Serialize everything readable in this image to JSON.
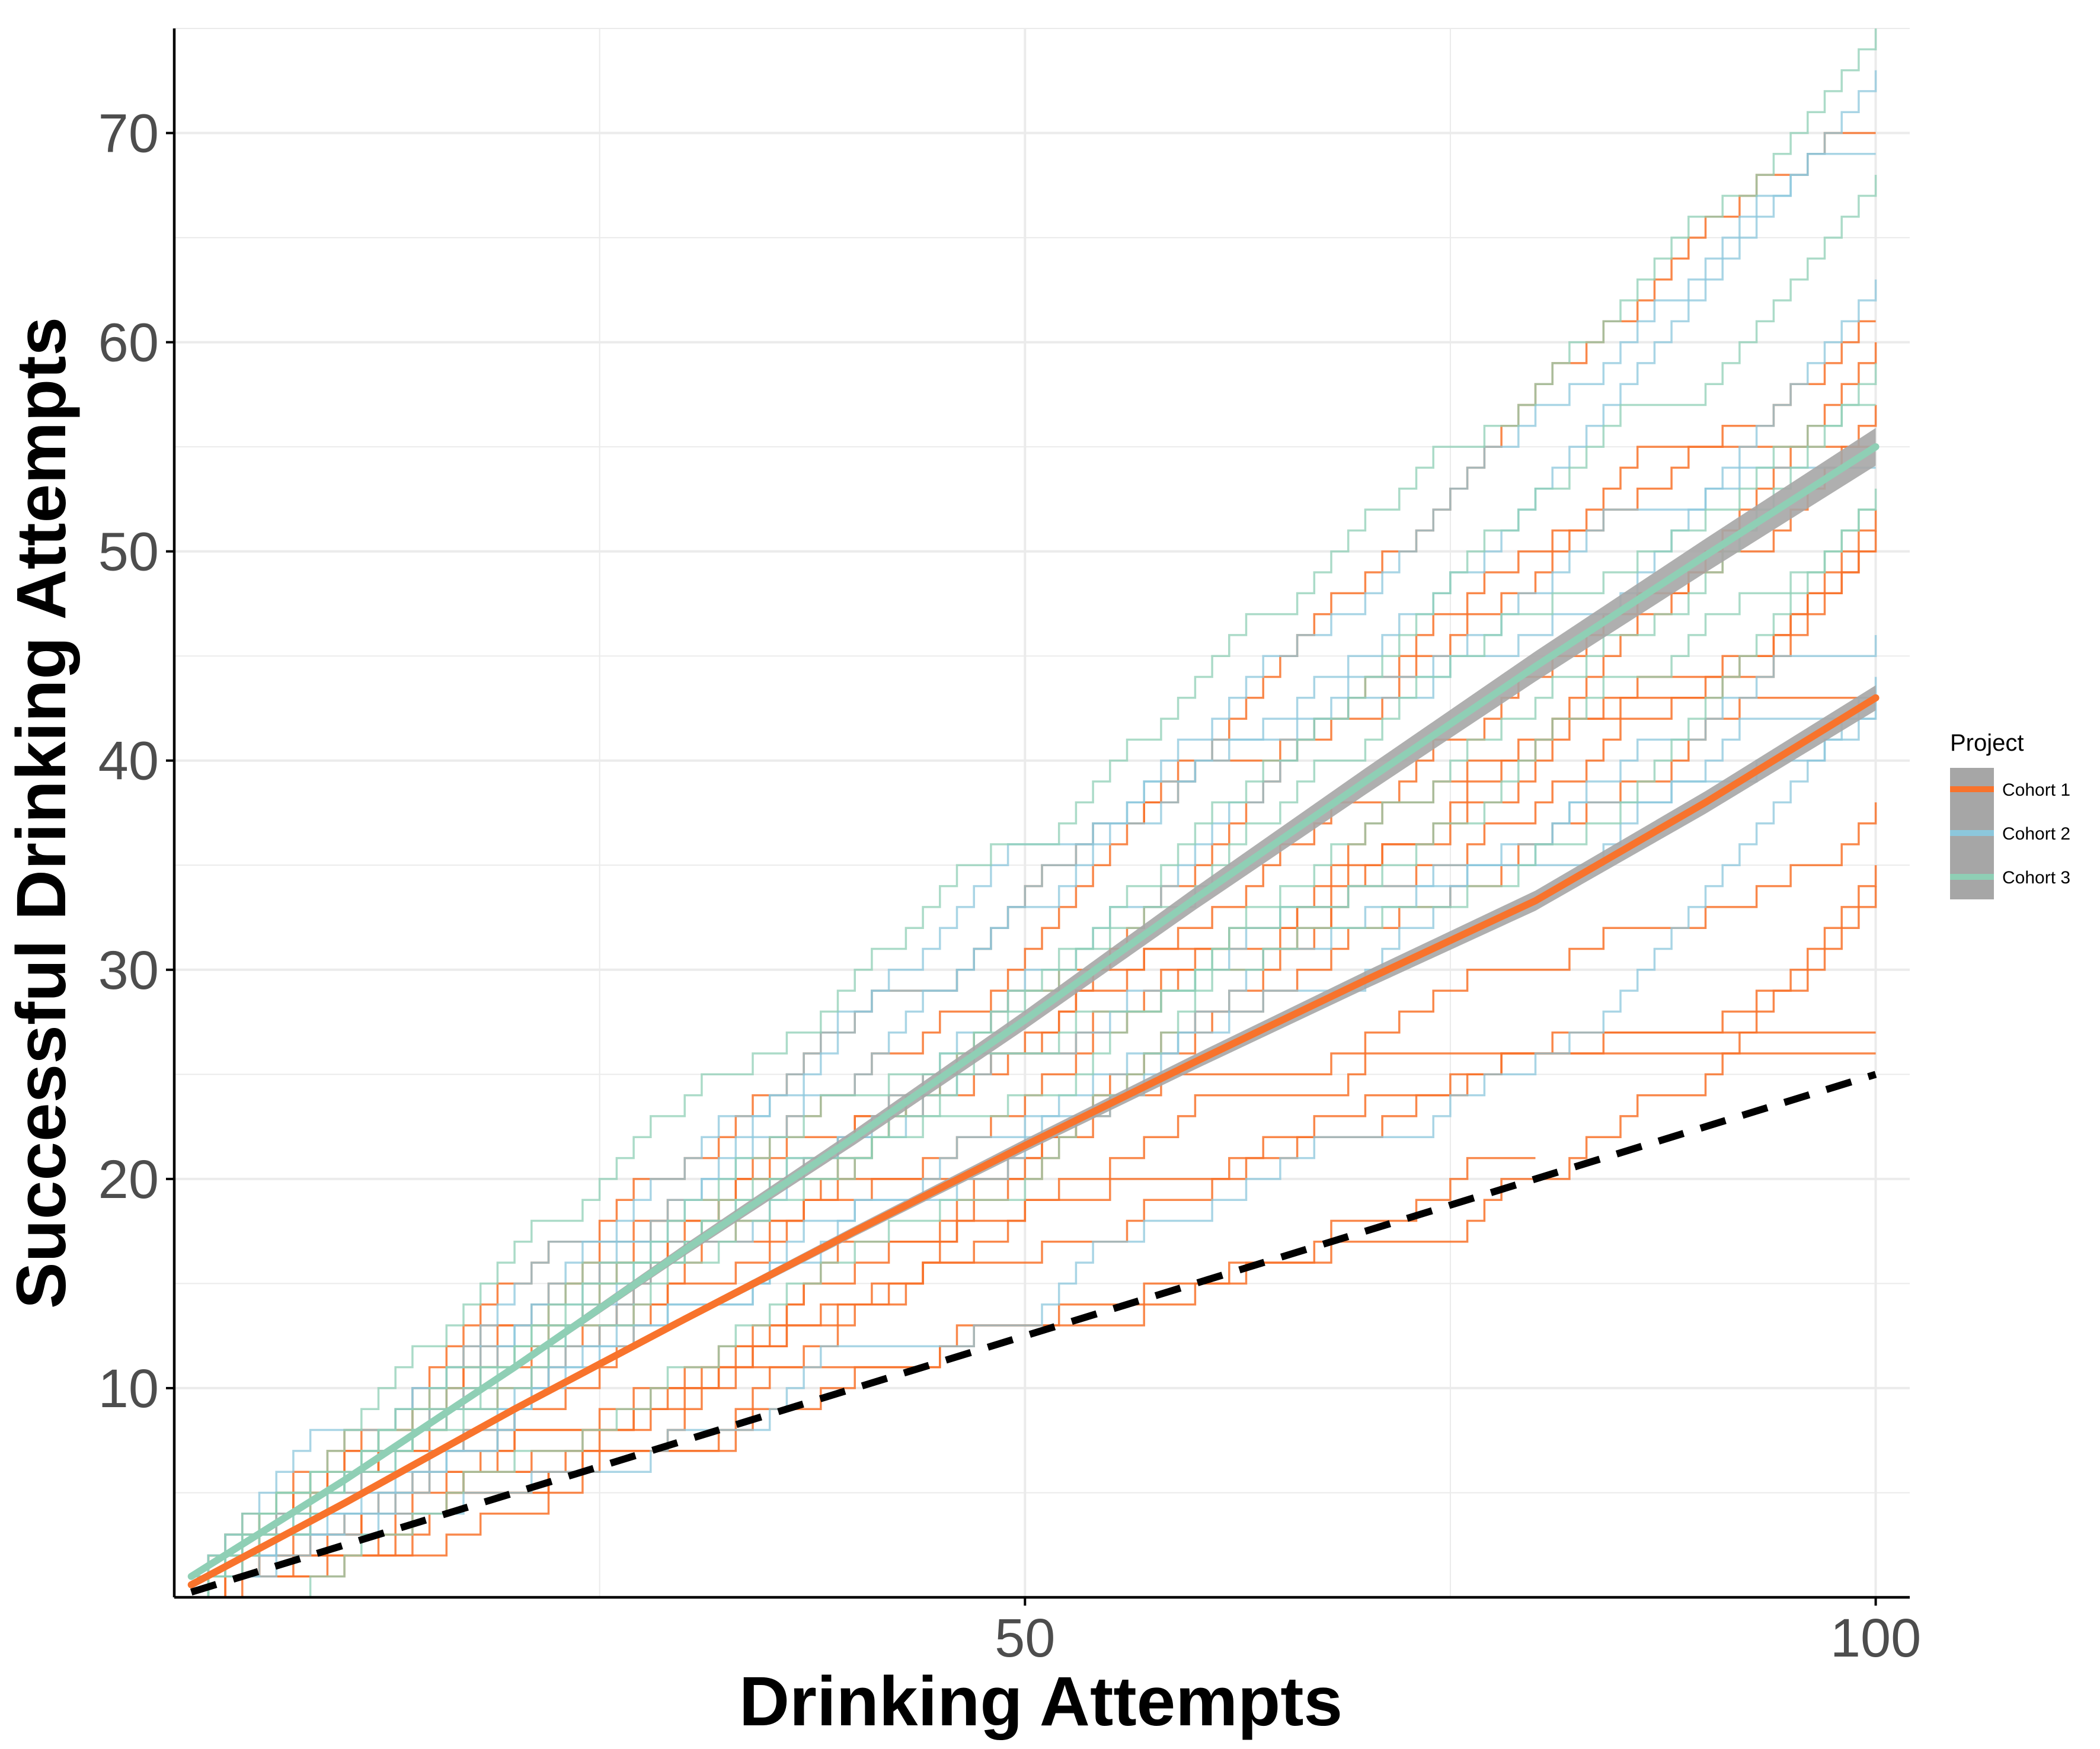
{
  "chart_data": {
    "type": "line",
    "xlabel": "Drinking Attempts",
    "ylabel": "Successful Drinking Attempts",
    "xlim": [
      0,
      102
    ],
    "ylim": [
      0,
      75
    ],
    "x_ticks": [
      50,
      100
    ],
    "x_tick_labels": [
      "50",
      "100"
    ],
    "y_ticks": [
      10,
      20,
      30,
      40,
      50,
      60,
      70
    ],
    "y_tick_labels": [
      "10",
      "20",
      "30",
      "40",
      "50",
      "60",
      "70"
    ],
    "grid": true,
    "legend": {
      "title": "Project",
      "placement": "right",
      "entries": [
        {
          "label": "Cohort 1",
          "color": "#f8732c"
        },
        {
          "label": "Cohort 2",
          "color": "#8cc7dc"
        },
        {
          "label": "Cohort 3",
          "color": "#8fcfb5"
        }
      ]
    },
    "colors": {
      "cohort1": "#f8732c",
      "cohort2": "#8cc7dc",
      "cohort3": "#8fcfb5",
      "ribbon": "#a6a6a6",
      "chance": "#000000",
      "grid": "#ebebeb"
    },
    "trend_lines": [
      {
        "cohort": "Cohort 1",
        "x": [
          1,
          10,
          20,
          30,
          40,
          50,
          60,
          70,
          80,
          90,
          100
        ],
        "y": [
          0.6,
          4.5,
          9.0,
          13.3,
          17.5,
          21.6,
          25.6,
          29.5,
          33.3,
          38.0,
          43.0
        ]
      },
      {
        "cohort": "Cohort 3",
        "x": [
          1,
          10,
          20,
          30,
          40,
          50,
          60,
          70,
          80,
          90,
          100
        ],
        "y": [
          1.0,
          5.6,
          11.0,
          16.6,
          22.0,
          27.6,
          33.4,
          39.0,
          44.5,
          49.8,
          55.0
        ]
      }
    ],
    "chance_line": {
      "x": [
        1,
        100
      ],
      "y": [
        0.25,
        25
      ]
    },
    "individual_final_values": {
      "Cohort 1": [
        70,
        61,
        60,
        57,
        55,
        52,
        51,
        50,
        43,
        38,
        35,
        34,
        27,
        26,
        21
      ],
      "Cohort 2": [
        73,
        69,
        63,
        54,
        46,
        44,
        43,
        42
      ],
      "Cohort 3": [
        75,
        68,
        59,
        57,
        53,
        52
      ]
    }
  }
}
